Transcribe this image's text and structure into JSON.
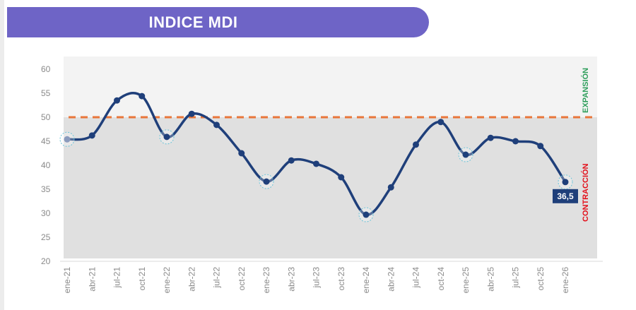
{
  "header": {
    "title": "INDICE MDI"
  },
  "chart_data": {
    "type": "line",
    "title": "INDICE MDI",
    "categories": [
      "ene-21",
      "abr-21",
      "jul-21",
      "oct-21",
      "ene-22",
      "abr-22",
      "jul-22",
      "oct-22",
      "ene-23",
      "abr-23",
      "jul-23",
      "oct-23",
      "ene-24",
      "abr-24",
      "jul-24",
      "oct-24",
      "ene-25",
      "abr-25",
      "jul-25",
      "oct-25",
      "ene-26"
    ],
    "values": [
      45.4,
      46.2,
      53.5,
      54.4,
      45.9,
      50.7,
      48.4,
      42.5,
      36.6,
      41.0,
      40.3,
      37.5,
      29.7,
      35.4,
      44.3,
      49.0,
      42.2,
      45.7,
      45.0,
      44.0,
      36.5
    ],
    "highlighted": [
      "ene-21",
      "ene-22",
      "ene-23",
      "ene-24",
      "ene-25",
      "ene-26"
    ],
    "ylim": [
      20,
      60
    ],
    "yticks": [
      20,
      25,
      30,
      35,
      40,
      45,
      50,
      55,
      60
    ],
    "threshold": 50,
    "zone_labels": {
      "upper": "EXPANSIÓN",
      "lower": "CONTRACCIÓN"
    },
    "last_value_label": "36,5",
    "colors": {
      "line": "#1f3f7a",
      "threshold": "#e8763a",
      "upper_zone": "#f3f3f3",
      "lower_zone": "#e0e0e0",
      "expansion": "#2e9e5b",
      "contraction": "#e3101b",
      "title_bar": "#6e64c6",
      "highlight_ring": "#6cc4d8"
    }
  }
}
